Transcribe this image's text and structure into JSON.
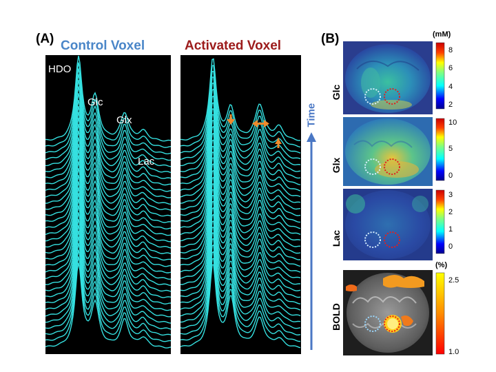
{
  "panel_a_label": "(A)",
  "panel_b_label": "(B)",
  "control_title": "Control Voxel",
  "activated_title": "Activated Voxel",
  "peaks": [
    "HDO",
    "Glc",
    "Glx",
    "Lac"
  ],
  "time_label": "Time",
  "maps": [
    {
      "label": "Glc",
      "unit": "(mM)",
      "ticks": [
        "8",
        "6",
        "4",
        "2"
      ]
    },
    {
      "label": "Glx",
      "unit": "",
      "ticks": [
        "10",
        "5",
        "0"
      ]
    },
    {
      "label": "Lac",
      "unit": "",
      "ticks": [
        "3",
        "2",
        "1",
        "0"
      ]
    },
    {
      "label": "BOLD",
      "unit": "(%)",
      "ticks": [
        "2.5",
        "1.0"
      ]
    }
  ],
  "colors": {
    "trace": "#35e0e0",
    "control": "#4a86c8",
    "activated": "#9c1b1b",
    "arrow": "#f08a2c",
    "time": "#4a77c4"
  },
  "icons": [
    "down-arrow-icon",
    "left-right-arrow-icon",
    "up-arrow-icon",
    "time-arrow-icon"
  ]
}
